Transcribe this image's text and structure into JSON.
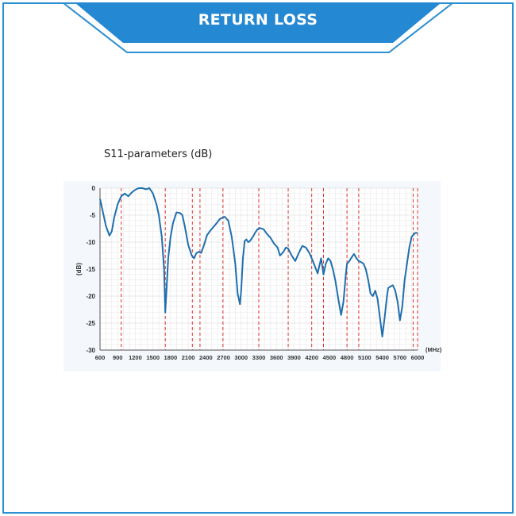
{
  "header": {
    "title": "RETURN LOSS"
  },
  "chart_data": {
    "type": "line",
    "title": "S11-parameters (dB)",
    "xlabel": "(MHz)",
    "ylabel": "(dB)",
    "xlim": [
      600,
      6000
    ],
    "ylim": [
      -30,
      0
    ],
    "x_ticks": [
      "600",
      "900",
      "1200",
      "1500",
      "1800",
      "2100",
      "2400",
      "2700",
      "3000",
      "3300",
      "3600",
      "3900",
      "4200",
      "4500",
      "4800",
      "5100",
      "5400",
      "5700",
      "6000"
    ],
    "y_ticks": [
      "0",
      "-5",
      "-10",
      "-15",
      "-20",
      "-25",
      "-30"
    ],
    "band_markers_mhz": [
      600,
      960,
      1710,
      2170,
      2300,
      2690,
      3300,
      3800,
      4200,
      4400,
      4800,
      5000,
      5925,
      6000
    ],
    "grid": true,
    "series": [
      {
        "color": "#1f6fae",
        "x": [
          600,
          640,
          700,
          760,
          800,
          840,
          900,
          960,
          1020,
          1080,
          1140,
          1200,
          1260,
          1320,
          1380,
          1440,
          1500,
          1560,
          1600,
          1650,
          1690,
          1710,
          1730,
          1760,
          1800,
          1840,
          1900,
          1960,
          2000,
          2040,
          2100,
          2160,
          2200,
          2240,
          2280,
          2320,
          2360,
          2420,
          2480,
          2560,
          2640,
          2720,
          2780,
          2840,
          2900,
          2940,
          2980,
          3000,
          3030,
          3060,
          3090,
          3120,
          3150,
          3200,
          3240,
          3280,
          3320,
          3380,
          3440,
          3500,
          3560,
          3620,
          3660,
          3720,
          3760,
          3800,
          3860,
          3920,
          3980,
          4040,
          4100,
          4160,
          4220,
          4300,
          4360,
          4400,
          4440,
          4480,
          4520,
          4560,
          4600,
          4660,
          4700,
          4740,
          4780,
          4800,
          4840,
          4880,
          4920,
          4960,
          5000,
          5040,
          5080,
          5120,
          5160,
          5200,
          5240,
          5280,
          5320,
          5360,
          5400,
          5440,
          5480,
          5500,
          5540,
          5580,
          5620,
          5660,
          5700,
          5740,
          5780,
          5820,
          5860,
          5900,
          5960,
          6000
        ],
        "y": [
          -2,
          -4,
          -7,
          -8.8,
          -8,
          -5.5,
          -3,
          -1.5,
          -1,
          -1.5,
          -0.8,
          -0.3,
          0.5,
          0.3,
          -0.2,
          0.2,
          -1,
          -3,
          -5,
          -9,
          -15,
          -23,
          -19,
          -13,
          -9,
          -6.5,
          -4.5,
          -4.6,
          -5,
          -7,
          -10.5,
          -12.5,
          -13,
          -12,
          -11.8,
          -12,
          -10.8,
          -8.7,
          -7.8,
          -6.8,
          -5.7,
          -5.3,
          -6,
          -9,
          -14,
          -19.5,
          -21.5,
          -19,
          -13,
          -9.8,
          -9.5,
          -10,
          -9.8,
          -9,
          -8.2,
          -7.6,
          -7.4,
          -7.6,
          -8.5,
          -9.2,
          -10.3,
          -11,
          -12.5,
          -11.8,
          -11,
          -11.2,
          -12.5,
          -13.5,
          -12,
          -10.7,
          -11,
          -12,
          -13.5,
          -15.8,
          -13,
          -16,
          -14,
          -13,
          -13.5,
          -15,
          -17,
          -21,
          -23.5,
          -21,
          -16,
          -14,
          -13.5,
          -12.8,
          -12.2,
          -13,
          -13.5,
          -13.7,
          -14,
          -15,
          -17,
          -19.5,
          -20,
          -19,
          -20.5,
          -24,
          -27.5,
          -24,
          -20,
          -18.5,
          -18.2,
          -18,
          -19,
          -21,
          -24.5,
          -22,
          -17,
          -14,
          -11,
          -9,
          -8.3,
          -8.3
        ]
      }
    ]
  }
}
